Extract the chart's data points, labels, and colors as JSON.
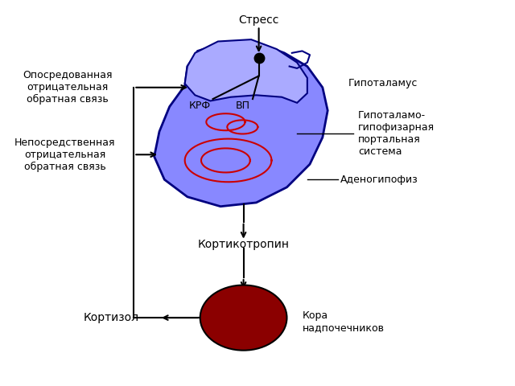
{
  "background_color": "#ffffff",
  "stress_text": "Стресс",
  "hypothalamus_text": "Гипоталамус",
  "krf_text": "КРФ",
  "vp_text": "ВП",
  "adenohypophysis_text": "Аденогипофиз",
  "portal_text": "Гипоталамо-\nгипофизарная\nпортальная\nсистема",
  "corticotropin_text": "Кортикотропин",
  "adrenal_text": "Кора\nнадпочечников",
  "cortisol_text": "Кортизол",
  "indirect_feedback_text": "Опосредованная\nотрицательная\nобратная связь",
  "direct_feedback_text": "Непосредственная\nотрицательная\nобратная связь",
  "blue_body_color": "#8888ff",
  "blue_body_outline": "#000080",
  "red_vessels_color": "#cc0000",
  "adrenal_circle_color": "#8B0000",
  "font_size": 9,
  "font_size_labels": 10
}
